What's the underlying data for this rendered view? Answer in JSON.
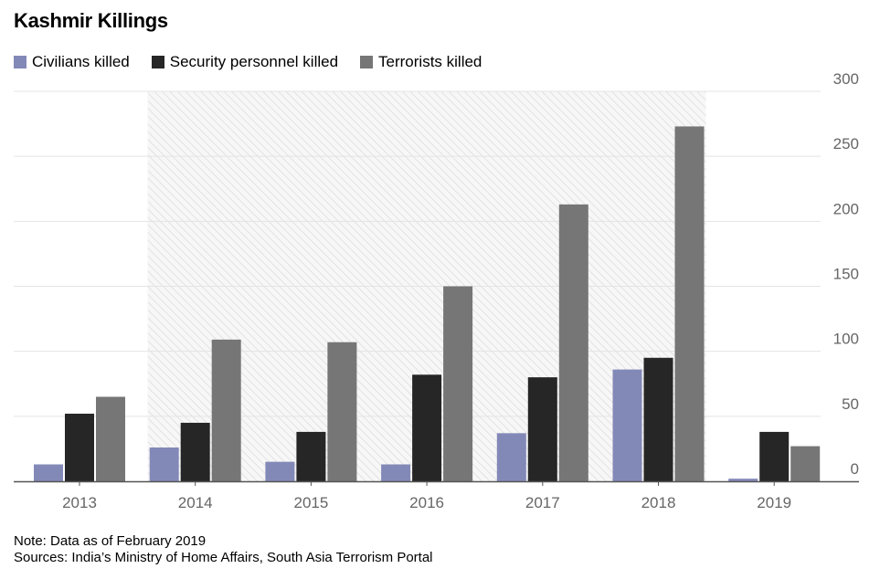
{
  "title": "Kashmir Killings",
  "note": "Note: Data as of February 2019",
  "sources": "Sources: India’s Ministry of Home Affairs, South Asia Terrorism Portal",
  "colors": {
    "civilians": "#8389b7",
    "security": "#262626",
    "terrorists": "#767676",
    "grid": "#e4e4e4",
    "axis": "#555555"
  },
  "chart_data": {
    "type": "bar",
    "title": "Kashmir Killings",
    "categories": [
      "2013",
      "2014",
      "2015",
      "2016",
      "2017",
      "2018",
      "2019"
    ],
    "series": [
      {
        "name": "Civilians killed",
        "color": "#8389b7",
        "values": [
          13,
          26,
          15,
          13,
          37,
          86,
          2
        ]
      },
      {
        "name": "Security personnel killed",
        "color": "#262626",
        "values": [
          52,
          45,
          38,
          82,
          80,
          95,
          38
        ]
      },
      {
        "name": "Terrorists killed",
        "color": "#767676",
        "values": [
          65,
          109,
          107,
          150,
          213,
          273,
          27
        ]
      }
    ],
    "yticks": [
      0,
      50,
      100,
      150,
      200,
      250,
      300
    ],
    "ylim": [
      0,
      300
    ],
    "yaxis_position": "right",
    "shaded_period": [
      "2014",
      "2018"
    ],
    "xlabel": "",
    "ylabel": "",
    "grid": true,
    "legend": "top-left"
  }
}
